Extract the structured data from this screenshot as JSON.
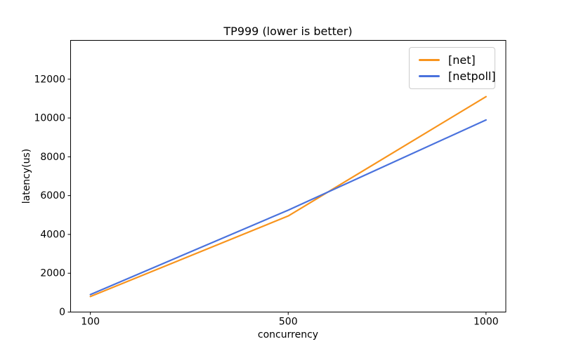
{
  "chart_data": {
    "type": "line",
    "title": "TP999 (lower is better)",
    "xlabel": "concurrency",
    "ylabel": "latency(us)",
    "categories": [
      "100",
      "500",
      "1000"
    ],
    "series": [
      {
        "name": "[net]",
        "color": "#f8941d",
        "values": [
          800,
          4950,
          11100
        ]
      },
      {
        "name": "[netpoll]",
        "color": "#4a72dd",
        "values": [
          900,
          5250,
          9900
        ]
      }
    ],
    "ylim": [
      0,
      14000
    ],
    "yticks": [
      0,
      2000,
      4000,
      6000,
      8000,
      10000,
      12000
    ],
    "grid": false,
    "legend_position": "upper right",
    "axis_color": "#000000",
    "background_color": "#ffffff"
  }
}
